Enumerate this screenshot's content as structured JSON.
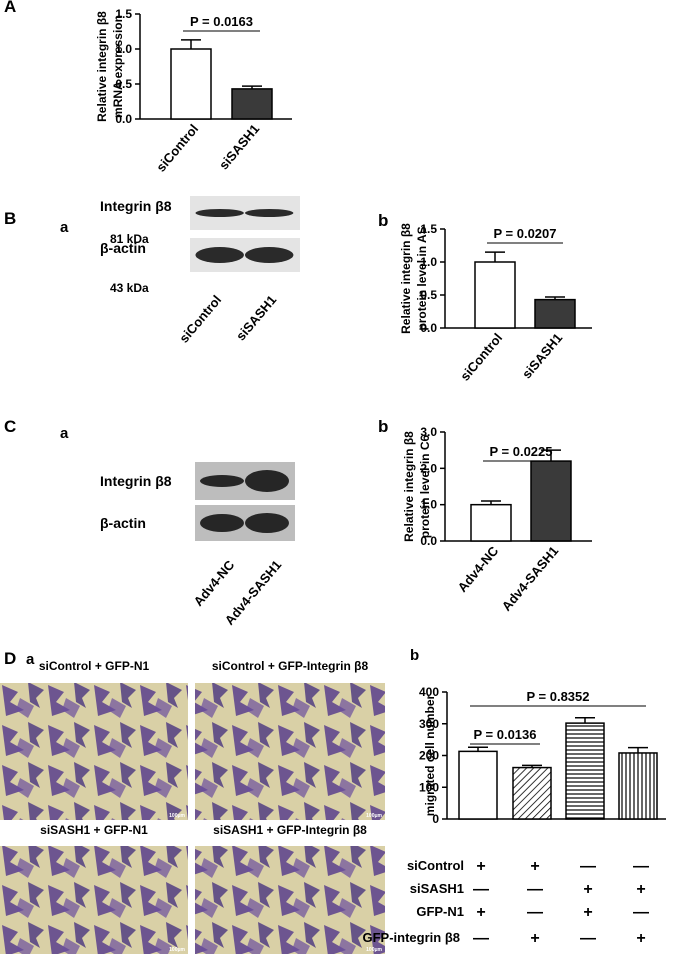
{
  "panel_labels": [
    "A",
    "B",
    "a",
    "b",
    "C",
    "a",
    "b",
    "D",
    "a",
    "b"
  ],
  "chart_data": [
    {
      "type": "bar",
      "ylabel": [
        "Relative integrin β8",
        "mRNA expression"
      ],
      "categories": [
        "siControl",
        "siSASH1"
      ],
      "values": [
        1.0,
        0.43
      ],
      "errors": [
        0.13,
        0.04
      ],
      "colors": [
        "#ffffff",
        "#3a3a3a"
      ],
      "patterns": [
        "none",
        "none"
      ],
      "ylim": [
        0,
        1.5
      ],
      "yticks": [
        {
          "value": 0,
          "label": "0.0"
        },
        0.5,
        {
          "value": 1,
          "label": "1.0"
        },
        1.5
      ],
      "grid": false,
      "annotations": [
        {
          "text": "P = 0.0163",
          "from": 0,
          "to": 1
        }
      ]
    },
    {
      "type": "bar",
      "ylabel": [
        "Relative integrin β8",
        "protein level in AS"
      ],
      "categories": [
        "siControl",
        "siSASH1"
      ],
      "values": [
        1.0,
        0.43
      ],
      "errors": [
        0.15,
        0.04
      ],
      "colors": [
        "#ffffff",
        "#3a3a3a"
      ],
      "patterns": [
        "none",
        "none"
      ],
      "ylim": [
        0,
        1.5
      ],
      "yticks": [
        {
          "value": 0,
          "label": "0.0"
        },
        0.5,
        {
          "value": 1,
          "label": "1.0"
        },
        1.5
      ],
      "grid": false,
      "annotations": [
        {
          "text": "P = 0.0207",
          "from": 0,
          "to": 1
        }
      ]
    },
    {
      "type": "bar",
      "ylabel": [
        "Relative integrin β8",
        "protein level in C6"
      ],
      "categories": [
        "Adv4-NC",
        "Adv4-SASH1"
      ],
      "values": [
        1.0,
        2.2
      ],
      "errors": [
        0.1,
        0.3
      ],
      "colors": [
        "#ffffff",
        "#3a3a3a"
      ],
      "patterns": [
        "none",
        "none"
      ],
      "ylim": [
        0,
        3
      ],
      "yticks": [
        {
          "value": 0,
          "label": "0.0"
        },
        {
          "value": 1,
          "label": "1.0"
        },
        {
          "value": 2,
          "label": "2.0"
        },
        {
          "value": 3,
          "label": "3.0"
        }
      ],
      "grid": false,
      "annotations": [
        {
          "text": "P = 0.0225",
          "from": 0,
          "to": 1
        }
      ]
    },
    {
      "type": "bar",
      "ylabel": [
        "migrated cell number"
      ],
      "categories": [
        null,
        null,
        null,
        null
      ],
      "values": [
        213,
        162,
        302,
        208
      ],
      "errors": [
        13,
        7,
        17,
        17
      ],
      "colors": [
        "#ffffff",
        "#ffffff",
        "#ffffff",
        "#ffffff"
      ],
      "patterns": [
        "none",
        "diagonal",
        "horizontal",
        "vertical"
      ],
      "ylim": [
        0,
        400
      ],
      "yticks": [
        0,
        100,
        200,
        300,
        400
      ],
      "grid": false,
      "annotations": [
        {
          "text": "P = 0.0136",
          "from": 0,
          "to": 1
        },
        {
          "text": "P = 0.8352",
          "from": 0,
          "to": 3
        }
      ]
    }
  ],
  "blots": [
    {
      "bands": [
        {
          "name": "Integrin β8",
          "size": "81 kDa"
        },
        {
          "name": "β-actin",
          "size": "43 kDa"
        }
      ],
      "lanes": [
        "siControl",
        "siSASH1"
      ]
    },
    {
      "bands": [
        {
          "name": "Integrin β8"
        },
        {
          "name": "β-actin"
        }
      ],
      "lanes": [
        "Adv4-NC",
        "Adv4-SASH1"
      ]
    }
  ],
  "micrographs": {
    "titles": [
      "siControl + GFP-N1",
      "siControl + GFP-Integrin β8",
      "siSASH1 + GFP-N1",
      "siSASH1 + GFP-Integrin β8"
    ],
    "scale": "100μm"
  },
  "conditions": [
    {
      "label": "siControl",
      "marks": [
        "+",
        "+",
        "—",
        "—"
      ]
    },
    {
      "label": "siSASH1",
      "marks": [
        "—",
        "—",
        "+",
        "+"
      ]
    },
    {
      "label": "GFP-N1",
      "marks": [
        "+",
        "—",
        "+",
        "—"
      ]
    },
    {
      "label": "GFP-integrin β8",
      "marks": [
        "—",
        "+",
        "—",
        "+"
      ]
    }
  ]
}
